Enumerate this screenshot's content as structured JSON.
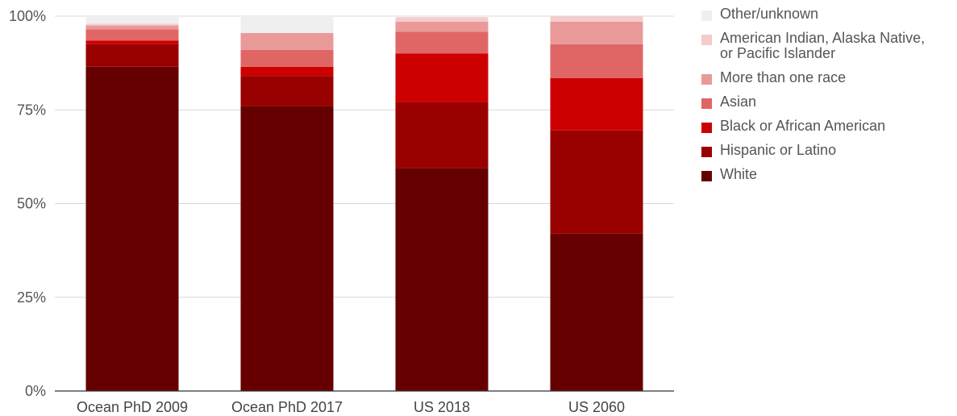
{
  "chart_data": {
    "type": "bar",
    "stacked": true,
    "normalized": true,
    "categories": [
      "Ocean PhD 2009",
      "Ocean PhD 2017",
      "US 2018",
      "US 2060"
    ],
    "y_ticks": [
      "0%",
      "25%",
      "50%",
      "75%",
      "100%"
    ],
    "ylim": [
      0,
      100
    ],
    "grid": true,
    "legend_position": "right",
    "series": [
      {
        "name": "White",
        "color": "#660000",
        "values": [
          86.5,
          76.0,
          59.5,
          42.0
        ]
      },
      {
        "name": "Hispanic or Latino",
        "color": "#990000",
        "values": [
          6.0,
          8.0,
          17.5,
          27.5
        ]
      },
      {
        "name": "Black or African American",
        "color": "#cc0000",
        "values": [
          1.0,
          2.5,
          13.0,
          14.0
        ]
      },
      {
        "name": "Asian",
        "color": "#e06666",
        "values": [
          3.0,
          4.5,
          5.8,
          9.0
        ]
      },
      {
        "name": "More than one race",
        "color": "#ea9999",
        "values": [
          1.0,
          4.5,
          2.7,
          6.0
        ]
      },
      {
        "name": "American Indian, Alaska Native,\nor Pacific Islander",
        "color": "#f4cccc",
        "values": [
          0.5,
          0.0,
          1.2,
          1.5
        ]
      },
      {
        "name": "Other/unknown",
        "color": "#efefef",
        "values": [
          2.0,
          4.5,
          0.3,
          0.0
        ]
      }
    ]
  }
}
